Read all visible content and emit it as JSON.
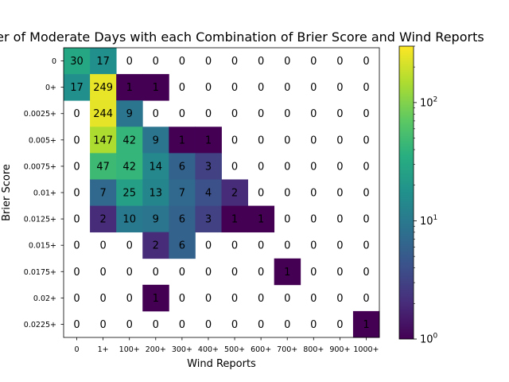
{
  "chart_data": {
    "type": "heatmap",
    "title": "Number of Moderate Days with each Combination of Brier Score and Wind Reports",
    "xlabel": "Wind Reports",
    "ylabel": "Brier Score",
    "x_categories": [
      "0",
      "1+",
      "100+",
      "200+",
      "300+",
      "400+",
      "500+",
      "600+",
      "700+",
      "800+",
      "900+",
      "1000+"
    ],
    "y_categories": [
      "0",
      "0+",
      "0.0025+",
      "0.005+",
      "0.0075+",
      "0.01+",
      "0.0125+",
      "0.015+",
      "0.0175+",
      "0.02+",
      "0.0225+"
    ],
    "values": [
      [
        30,
        17,
        0,
        0,
        0,
        0,
        0,
        0,
        0,
        0,
        0,
        0
      ],
      [
        17,
        249,
        1,
        1,
        0,
        0,
        0,
        0,
        0,
        0,
        0,
        0
      ],
      [
        0,
        244,
        9,
        0,
        0,
        0,
        0,
        0,
        0,
        0,
        0,
        0
      ],
      [
        0,
        147,
        42,
        9,
        1,
        1,
        0,
        0,
        0,
        0,
        0,
        0
      ],
      [
        0,
        47,
        42,
        14,
        6,
        3,
        0,
        0,
        0,
        0,
        0,
        0
      ],
      [
        0,
        7,
        25,
        13,
        7,
        4,
        2,
        0,
        0,
        0,
        0,
        0
      ],
      [
        0,
        2,
        10,
        9,
        6,
        3,
        1,
        1,
        0,
        0,
        0,
        0
      ],
      [
        0,
        0,
        0,
        2,
        6,
        0,
        0,
        0,
        0,
        0,
        0,
        0
      ],
      [
        0,
        0,
        0,
        0,
        0,
        0,
        0,
        0,
        1,
        0,
        0,
        0
      ],
      [
        0,
        0,
        0,
        1,
        0,
        0,
        0,
        0,
        0,
        0,
        0,
        0
      ],
      [
        0,
        0,
        0,
        0,
        0,
        0,
        0,
        0,
        0,
        0,
        0,
        1
      ]
    ],
    "colorbar": {
      "scale": "log",
      "range": [
        1,
        300
      ],
      "colormap": "viridis",
      "tick_labels": [
        {
          "value": 1,
          "base": "10",
          "exp": "0"
        },
        {
          "value": 10,
          "base": "10",
          "exp": "1"
        },
        {
          "value": 100,
          "base": "10",
          "exp": "2"
        }
      ]
    },
    "zero_cells": "blank",
    "grid": false,
    "legend": "colorbar-right"
  }
}
